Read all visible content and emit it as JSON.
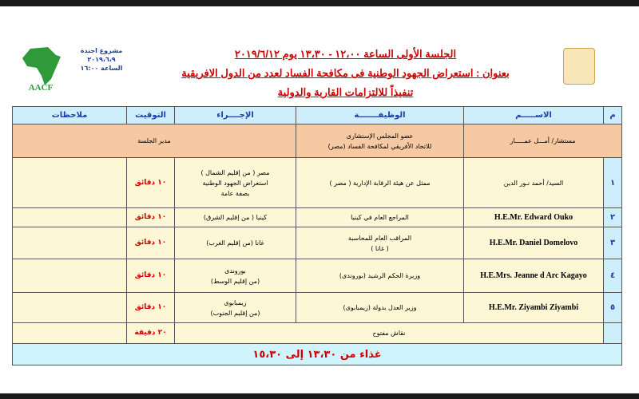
{
  "header": {
    "title_line1": "الجلسة الأولى الساعة ١٢،٠٠ - ١٣،٣٠ يوم ٢٠١٩/٦/١٢",
    "title_line2": "بعنوان : استعراض الجهود الوطنية فى مكافحة الفساد لعدد من الدول الافريقية",
    "title_line3": "تنفيذاً للالتزامات القارية والدولية",
    "project": [
      "مشروع اجندة",
      "٢٠١٩،٦،٩",
      "الساعة ١٦:٠٠"
    ],
    "logo_left": "AACF",
    "logo_right": "الرقابة الإدارية"
  },
  "table": {
    "columns": [
      "م",
      "الاســـــم",
      "الوظيفـــــــة",
      "الإجــــراء",
      "التوقيت",
      "ملاحظات"
    ],
    "moderator": {
      "name": "مستشار/ أمـــل عمـــــار",
      "job": [
        "عضو المجلس الإستشارى",
        "للاتحاد الأفريقي لمكافحة الفساد (مصر)"
      ],
      "role": "مدير الجلسة"
    },
    "rows": [
      {
        "num": "١",
        "name": "السيد/ أحمد نـور الدين",
        "job": [
          "ممثل عن هيئة الرقابة الإدارية ( مصر )"
        ],
        "action": [
          "مصر ( من إقليم الشمال )",
          "استعراض الجهود الوطنية",
          "بصفة عامة"
        ],
        "time": "١٠ دقائق",
        "en": false
      },
      {
        "num": "٢",
        "name": "H.E.Mr. Edward Ouko",
        "job": [
          "المراجع العام  في كينيا"
        ],
        "action": [
          "كينيا ( من إقليم الشرق)"
        ],
        "time": "١٠ دقائق",
        "en": true
      },
      {
        "num": "٣",
        "name": "H.E.Mr. Daniel  Domelovo",
        "job": [
          "المراقب العام للمحاسبة",
          "( غانا )"
        ],
        "action": [
          "غانا (من إقليم الغرب)"
        ],
        "time": "١٠ دقائق",
        "en": true
      },
      {
        "num": "٤",
        "name": "H.E.Mrs. Jeanne d Arc Kagayo",
        "job": [
          "وزيرة الحكم الرشيد (بوروندى)"
        ],
        "action": [
          "بوروندى",
          "(من إقليم الوسط)"
        ],
        "time": "١٠ دقائق",
        "en": true
      },
      {
        "num": "٥",
        "name": "H.E.Mr.  Ziyambi Ziyambi",
        "job": [
          "وزير العدل بدولة (زيمبابوى)"
        ],
        "action": [
          "زيمبابوى",
          "(من إقليم الجنوب)"
        ],
        "time": "١٠ دقائق",
        "en": true
      }
    ],
    "discussion": {
      "label": "نقاش مفتوح",
      "time": "٢٠ دقيقة"
    },
    "lunch": "غذاء من ١٣،٣٠ إلى ١٥،٣٠"
  }
}
